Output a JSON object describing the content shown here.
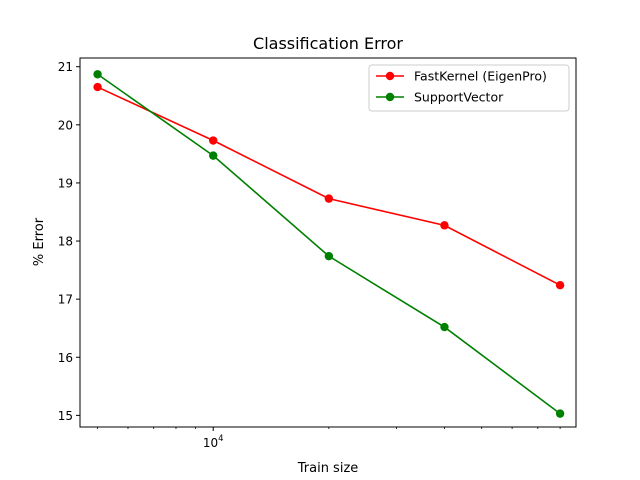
{
  "chart_data": {
    "type": "line",
    "title": "Classification Error",
    "xlabel": "Train size",
    "ylabel": "% Error",
    "x_scale": "log",
    "x_tick_label": "10^4",
    "x_tick_label_base": "10",
    "x_tick_label_exp": "4",
    "xlim": [
      4500,
      88000
    ],
    "ylim": [
      14.8,
      21.15
    ],
    "y_ticks": [
      15,
      16,
      17,
      18,
      19,
      20,
      21
    ],
    "grid": false,
    "legend_position": "top-right",
    "x": [
      5000,
      10000,
      20000,
      40000,
      80000
    ],
    "series": [
      {
        "name": "FastKernel (EigenPro)",
        "color": "#ff0000",
        "values": [
          20.65,
          19.73,
          18.73,
          18.27,
          17.24
        ]
      },
      {
        "name": "SupportVector",
        "color": "#008000",
        "values": [
          20.87,
          19.47,
          17.74,
          16.52,
          15.03
        ]
      }
    ]
  }
}
